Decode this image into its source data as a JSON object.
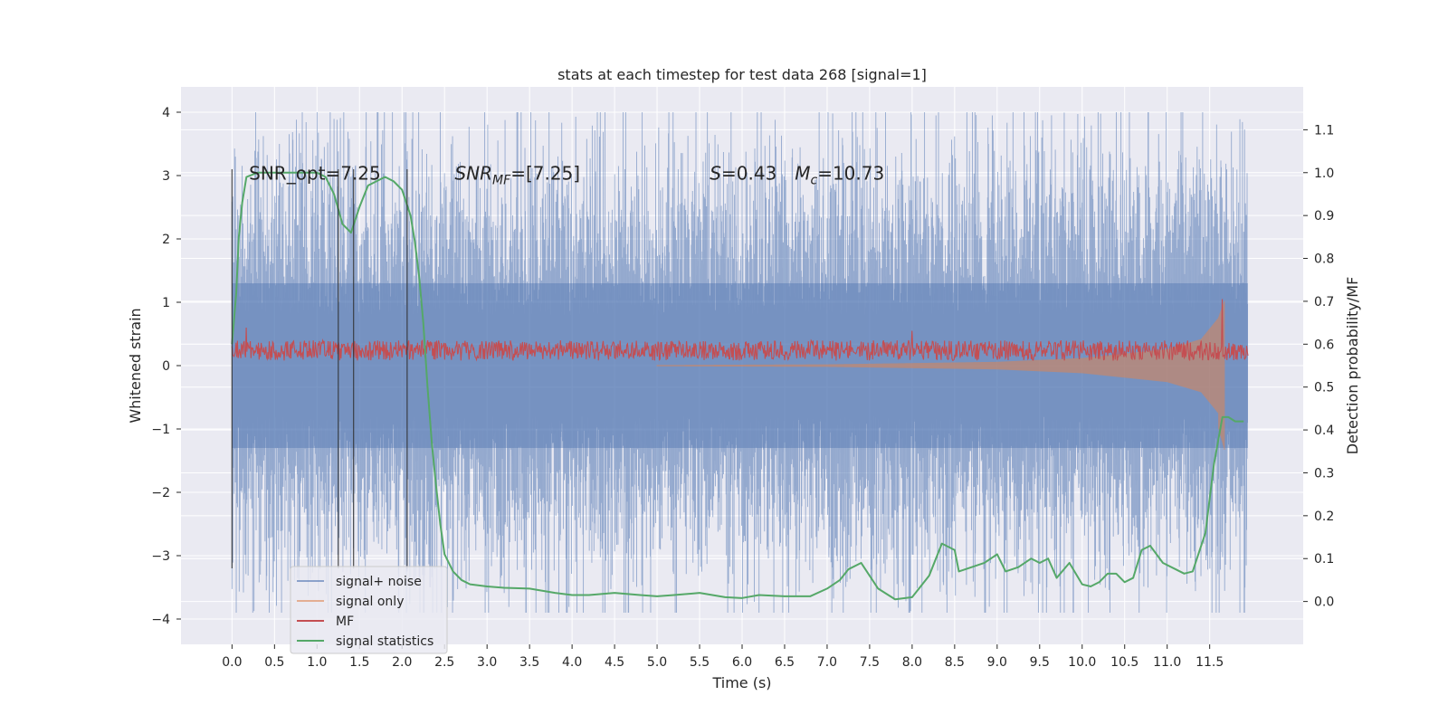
{
  "chart_data": {
    "type": "line",
    "title": "stats at each timestep for test data 268 [signal=1]",
    "xlabel": "Time (s)",
    "ylabel": "Whitened strain",
    "ylabel_right": "Detection probability/MF",
    "xlim": [
      -0.6,
      12.6
    ],
    "ylim": [
      -4.4,
      4.4
    ],
    "ylim_right": [
      -0.1,
      1.2
    ],
    "x_ticks": [
      0.0,
      0.5,
      1.0,
      1.5,
      2.0,
      2.5,
      3.0,
      3.5,
      4.0,
      4.5,
      5.0,
      5.5,
      6.0,
      6.5,
      7.0,
      7.5,
      8.0,
      8.5,
      9.0,
      9.5,
      10.0,
      10.5,
      11.0,
      11.5
    ],
    "x_tick_labels": [
      "0.0",
      "0.5",
      "1.0",
      "1.5",
      "2.0",
      "2.5",
      "3.0",
      "3.5",
      "4.0",
      "4.5",
      "5.0",
      "5.5",
      "6.0",
      "6.5",
      "7.0",
      "7.5",
      "8.0",
      "8.5",
      "9.0",
      "9.5",
      "10.0",
      "10.5",
      "11.0",
      "11.5"
    ],
    "y_ticks": [
      -4,
      -3,
      -2,
      -1,
      0,
      1,
      2,
      3,
      4
    ],
    "y_tick_labels": [
      "−4",
      "−3",
      "−2",
      "−1",
      "0",
      "1",
      "2",
      "3",
      "4"
    ],
    "y_right_ticks": [
      0.0,
      0.1,
      0.2,
      0.3,
      0.4,
      0.5,
      0.6,
      0.7,
      0.8,
      0.9,
      1.0,
      1.1
    ],
    "y_right_tick_labels": [
      "0.0",
      "0.1",
      "0.2",
      "0.3",
      "0.4",
      "0.5",
      "0.6",
      "0.7",
      "0.8",
      "0.9",
      "1.0",
      "1.1"
    ],
    "grid": true,
    "legend_position": "lower-left",
    "annotations": [
      {
        "prefix": "SNR_opt=7.25",
        "x": 0.2,
        "y": 3.05
      },
      {
        "math": "SNR",
        "sub": "MF",
        "suffix": "=[7.25]",
        "x": 2.62,
        "y": 3.05
      },
      {
        "math": "S",
        "suffix": "=0.43",
        "x": 5.62,
        "y": 3.05
      },
      {
        "math": "M",
        "sub": "c",
        "suffix": "=10.73",
        "x": 6.62,
        "y": 3.05
      }
    ],
    "vertical_markers": [
      0.0,
      1.25,
      1.43,
      2.06
    ],
    "vertical_marker_range": [
      -3.2,
      3.1
    ],
    "series": [
      {
        "name": "signal+ noise",
        "color": "#4c72b0",
        "kind": "noise_band",
        "x_range": [
          0.0,
          11.95
        ],
        "typical_peak": 2.3,
        "max_value": 4.0,
        "min_value": -3.9
      },
      {
        "name": "signal only",
        "color": "#dd8452",
        "kind": "chirp",
        "x_range": [
          5.0,
          11.68
        ],
        "envelope_x": [
          5.0,
          7.0,
          9.0,
          10.0,
          11.0,
          11.4,
          11.6,
          11.68
        ],
        "envelope_y": [
          0.01,
          0.02,
          0.06,
          0.12,
          0.26,
          0.42,
          0.75,
          1.05
        ]
      },
      {
        "name": "MF",
        "color": "#c44e52",
        "kind": "mf",
        "x_range": [
          0.0,
          11.95
        ],
        "baseline": 0.2,
        "spread": 0.2,
        "spikes": [
          [
            0.17,
            0.6
          ],
          [
            8.0,
            0.55
          ],
          [
            11.65,
            1.05
          ]
        ]
      },
      {
        "name": "signal statistics",
        "color": "#55a868",
        "kind": "line",
        "axis": "right",
        "x": [
          0.0,
          0.05,
          0.08,
          0.12,
          0.17,
          0.3,
          0.5,
          0.8,
          1.0,
          1.1,
          1.2,
          1.3,
          1.4,
          1.5,
          1.6,
          1.7,
          1.8,
          1.9,
          2.0,
          2.1,
          2.15,
          2.2,
          2.25,
          2.3,
          2.35,
          2.4,
          2.45,
          2.5,
          2.6,
          2.7,
          2.8,
          3.0,
          3.2,
          3.5,
          3.8,
          4.0,
          4.2,
          4.5,
          4.8,
          5.0,
          5.2,
          5.5,
          5.8,
          6.0,
          6.2,
          6.5,
          6.8,
          7.0,
          7.15,
          7.25,
          7.4,
          7.6,
          7.8,
          8.0,
          8.2,
          8.35,
          8.5,
          8.55,
          8.7,
          8.85,
          9.0,
          9.1,
          9.25,
          9.4,
          9.5,
          9.6,
          9.7,
          9.85,
          10.0,
          10.1,
          10.2,
          10.3,
          10.4,
          10.5,
          10.6,
          10.7,
          10.8,
          10.95,
          11.1,
          11.2,
          11.3,
          11.45,
          11.55,
          11.65,
          11.72,
          11.8,
          11.9
        ],
        "y": [
          0.6,
          0.72,
          0.85,
          0.93,
          0.99,
          1.0,
          1.0,
          1.0,
          1.0,
          0.99,
          0.95,
          0.88,
          0.86,
          0.92,
          0.97,
          0.98,
          0.99,
          0.98,
          0.96,
          0.9,
          0.84,
          0.76,
          0.65,
          0.5,
          0.37,
          0.27,
          0.18,
          0.11,
          0.07,
          0.05,
          0.04,
          0.035,
          0.032,
          0.03,
          0.02,
          0.015,
          0.015,
          0.02,
          0.015,
          0.012,
          0.015,
          0.02,
          0.01,
          0.008,
          0.015,
          0.012,
          0.012,
          0.03,
          0.05,
          0.075,
          0.09,
          0.03,
          0.005,
          0.01,
          0.06,
          0.135,
          0.12,
          0.07,
          0.08,
          0.09,
          0.11,
          0.07,
          0.08,
          0.1,
          0.09,
          0.1,
          0.055,
          0.09,
          0.04,
          0.035,
          0.045,
          0.065,
          0.065,
          0.045,
          0.055,
          0.12,
          0.13,
          0.09,
          0.075,
          0.065,
          0.07,
          0.16,
          0.32,
          0.43,
          0.43,
          0.42,
          0.42
        ]
      }
    ]
  }
}
